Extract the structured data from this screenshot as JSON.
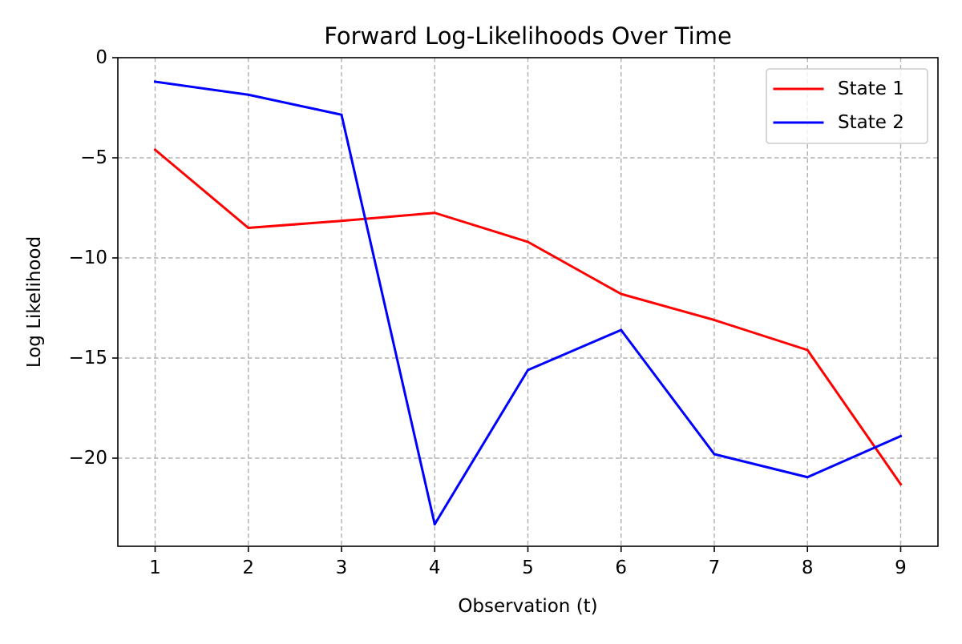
{
  "chart_data": {
    "type": "line",
    "title": "Forward Log-Likelihoods Over Time",
    "xlabel": "Observation (t)",
    "ylabel": "Log Likelihood",
    "x": [
      1,
      2,
      3,
      4,
      5,
      6,
      7,
      8,
      9
    ],
    "xlim": [
      0.6,
      9.4
    ],
    "ylim": [
      -24.4,
      0
    ],
    "x_ticks": [
      1,
      2,
      3,
      4,
      5,
      6,
      7,
      8,
      9
    ],
    "y_ticks": [
      0,
      -5,
      -10,
      -15,
      -20
    ],
    "x_tick_labels": [
      "1",
      "2",
      "3",
      "4",
      "5",
      "6",
      "7",
      "8",
      "9"
    ],
    "y_tick_labels": [
      "0",
      "−5",
      "−10",
      "−15",
      "−20"
    ],
    "grid": true,
    "legend_position": "top-right",
    "series": [
      {
        "name": "State 1",
        "color": "#ff0000",
        "values": [
          -4.6,
          -8.5,
          -8.15,
          -7.75,
          -9.2,
          -11.8,
          -13.1,
          -14.6,
          -21.3
        ]
      },
      {
        "name": "State 2",
        "color": "#0000ff",
        "values": [
          -1.2,
          -1.85,
          -2.85,
          -23.3,
          -15.6,
          -13.6,
          -19.8,
          -20.95,
          -18.9
        ]
      }
    ]
  }
}
